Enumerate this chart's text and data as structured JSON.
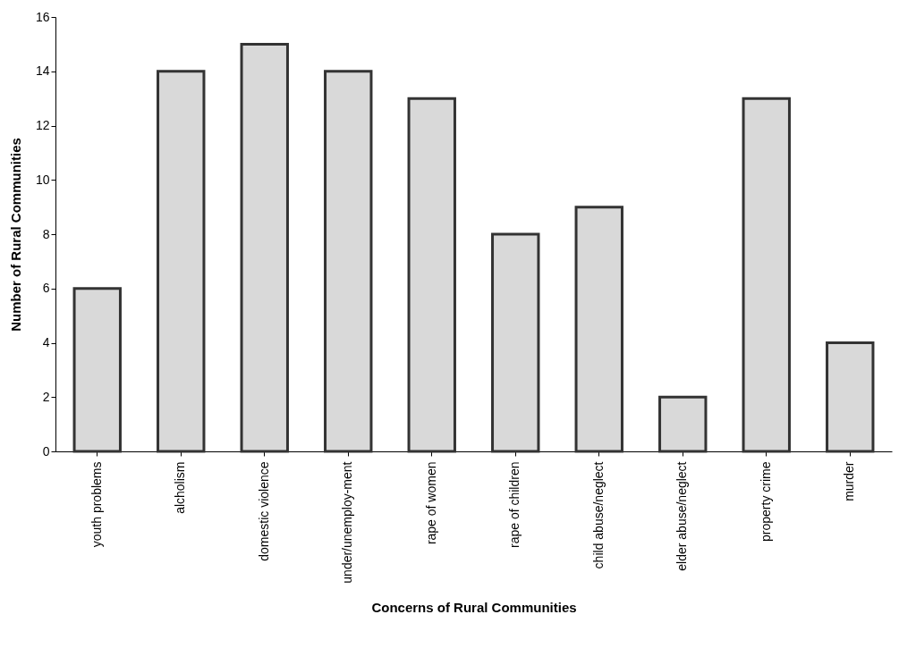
{
  "chart_data": {
    "type": "bar",
    "xlabel": "Concerns of Rural Communities",
    "ylabel": "Number of Rural Communities",
    "categories": [
      "youth problems",
      "alcholism",
      "domestic violence",
      "under/unemploy-ment",
      "rape of women",
      "rape of children",
      "child abuse/neglect",
      "elder abuse/neglect",
      "property crime",
      "murder"
    ],
    "values": [
      6,
      14,
      15,
      14,
      13,
      8,
      9,
      2,
      13,
      4
    ],
    "color": "#d9d9d9",
    "ylim": [
      0,
      16
    ],
    "yticks": [
      0,
      2,
      4,
      6,
      8,
      10,
      12,
      14,
      16
    ],
    "grid": false
  }
}
